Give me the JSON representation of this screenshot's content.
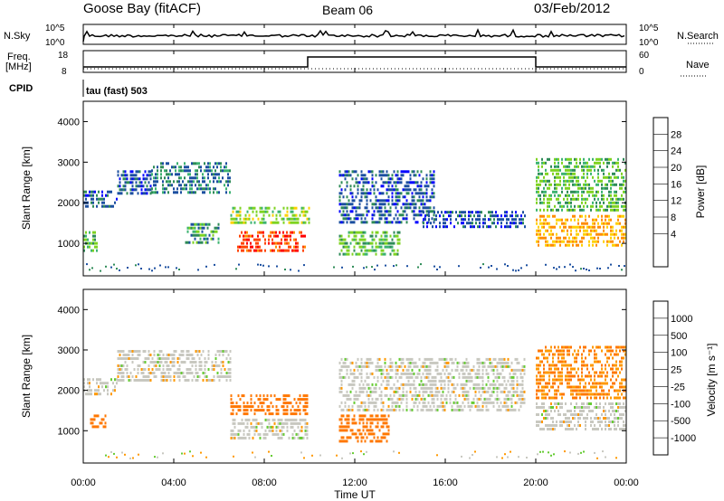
{
  "header": {
    "station": "Goose Bay (fitACF)",
    "beam": "Beam 06",
    "date": "03/Feb/2012"
  },
  "noise_panel": {
    "left_label": "N.Sky",
    "right_label": "N.Search",
    "left_ticks": [
      "10^5",
      "10^0"
    ],
    "right_ticks": [
      "10^5",
      "10^0"
    ]
  },
  "freq_panel": {
    "left_label_1": "Freq.",
    "left_label_2": "[MHz]",
    "left_ticks": [
      "18",
      "8"
    ],
    "right_label": "Nave",
    "right_ticks": [
      "60",
      "0"
    ]
  },
  "cpid": {
    "label": "CPID",
    "value": "tau (fast) 503"
  },
  "power_colorbar": {
    "label": "Power [dB]",
    "ticks": [
      "28",
      "24",
      "20",
      "16",
      "12",
      "8",
      "4"
    ],
    "colors": [
      "#ff0000",
      "#ff4400",
      "#ff8c00",
      "#ffd000",
      "#7ed321",
      "#3cb371",
      "#2e8b57",
      "#1c4fa0",
      "#0000ff"
    ]
  },
  "velocity_colorbar": {
    "label": "Velocity [m s⁻¹]",
    "ticks": [
      "1000",
      "500",
      "100",
      "25",
      "-25",
      "-100",
      "-500",
      "-1000"
    ],
    "colors": [
      "#1f3fbf",
      "#1f7a3a",
      "#3aa63a",
      "#66cc33",
      "#c8c8c0",
      "#ff9900",
      "#ff7700",
      "#ff4400",
      "#ff0000"
    ]
  },
  "chart_data": [
    {
      "type": "heatmap",
      "name": "power",
      "ylabel": "Slant Range [km]",
      "ylim": [
        200,
        4500
      ],
      "yticks": [
        1000,
        2000,
        3000,
        4000
      ],
      "xlim": [
        0,
        24
      ],
      "regions": [
        {
          "t0": 0.0,
          "t1": 0.6,
          "r0": 800,
          "r1": 1300,
          "level": 12
        },
        {
          "t0": 0.0,
          "t1": 1.5,
          "r0": 1900,
          "r1": 2300,
          "level": 6
        },
        {
          "t0": 1.5,
          "t1": 3.0,
          "r0": 2200,
          "r1": 2800,
          "level": 6
        },
        {
          "t0": 3.0,
          "t1": 6.5,
          "r0": 2200,
          "r1": 3000,
          "level": 8
        },
        {
          "t0": 4.5,
          "t1": 6.0,
          "r0": 1000,
          "r1": 1500,
          "level": 10
        },
        {
          "t0": 6.5,
          "t1": 10.0,
          "r0": 1500,
          "r1": 1900,
          "level": 14
        },
        {
          "t0": 6.8,
          "t1": 9.8,
          "r0": 800,
          "r1": 1300,
          "level": 26
        },
        {
          "t0": 11.3,
          "t1": 15.5,
          "r0": 1500,
          "r1": 2800,
          "level": 6
        },
        {
          "t0": 11.3,
          "t1": 14.0,
          "r0": 700,
          "r1": 1300,
          "level": 12
        },
        {
          "t0": 15.0,
          "t1": 19.5,
          "r0": 1400,
          "r1": 1800,
          "level": 6
        },
        {
          "t0": 20.0,
          "t1": 24.0,
          "r0": 900,
          "r1": 1700,
          "level": 20
        },
        {
          "t0": 20.0,
          "t1": 24.0,
          "r0": 1800,
          "r1": 3100,
          "level": 12
        }
      ]
    },
    {
      "type": "heatmap",
      "name": "velocity",
      "ylabel": "Slant Range [km]",
      "xlabel": "Time UT",
      "ylim": [
        200,
        4500
      ],
      "yticks": [
        1000,
        2000,
        3000,
        4000
      ],
      "xlim": [
        0,
        24
      ],
      "xticks": [
        "00:00",
        "04:00",
        "08:00",
        "12:00",
        "16:00",
        "20:00",
        "00:00"
      ],
      "regions": [
        {
          "t0": 0.0,
          "t1": 1.5,
          "r0": 1900,
          "r1": 2300,
          "level": 0
        },
        {
          "t0": 1.5,
          "t1": 6.5,
          "r0": 2200,
          "r1": 3000,
          "level": 0
        },
        {
          "t0": 0.3,
          "t1": 1.0,
          "r0": 1100,
          "r1": 1400,
          "level": -200
        },
        {
          "t0": 6.5,
          "t1": 9.9,
          "r0": 1400,
          "r1": 1900,
          "level": -200
        },
        {
          "t0": 6.5,
          "t1": 9.9,
          "r0": 800,
          "r1": 1300,
          "level": 0
        },
        {
          "t0": 11.3,
          "t1": 13.5,
          "r0": 700,
          "r1": 1400,
          "level": -150
        },
        {
          "t0": 11.3,
          "t1": 19.5,
          "r0": 1500,
          "r1": 2800,
          "level": 0
        },
        {
          "t0": 20.0,
          "t1": 24.0,
          "r0": 1000,
          "r1": 1700,
          "level": 0
        },
        {
          "t0": 20.0,
          "t1": 24.0,
          "r0": 1800,
          "r1": 3100,
          "level": -100
        }
      ]
    }
  ]
}
